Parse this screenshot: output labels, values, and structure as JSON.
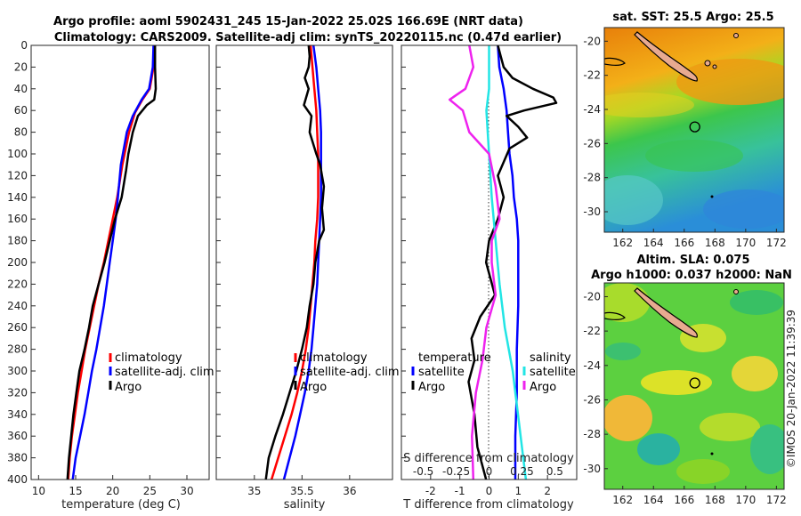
{
  "header": {
    "title_line1": "Argo profile: aoml 5902431_245 15-Jan-2022 25.02S 166.69E (NRT data)",
    "title_line2": "Climatology: CARS2009. Satellite-adj clim: synTS_20220115.nc (0.47d earlier)"
  },
  "watermark": "©IMOS 20-Jan-2022 11:39:39",
  "colors": {
    "climatology": "#ff0000",
    "satellite": "#0000ff",
    "argo": "#000000",
    "sal_satellite": "#22e5e5",
    "sal_argo": "#ee22ee",
    "map_land": "#e8aa90"
  },
  "depth_axis": {
    "ylim": [
      0,
      400
    ],
    "ticks": [
      0,
      20,
      40,
      60,
      80,
      100,
      120,
      140,
      160,
      180,
      200,
      220,
      240,
      260,
      280,
      300,
      320,
      340,
      360,
      380,
      400
    ]
  },
  "chart_data": [
    {
      "type": "line",
      "panel": "temperature",
      "xlabel": "temperature (deg C)",
      "xlim": [
        9,
        33
      ],
      "xticks": [
        10,
        15,
        20,
        25,
        30
      ],
      "legend": [
        "climatology",
        "satellite-adj. clim",
        "Argo"
      ],
      "series": [
        {
          "name": "climatology",
          "color": "#ff0000",
          "points": [
            [
              25.6,
              0
            ],
            [
              25.5,
              20
            ],
            [
              25.0,
              40
            ],
            [
              24.0,
              50
            ],
            [
              23.0,
              62
            ],
            [
              22.2,
              80
            ],
            [
              21.3,
              110
            ],
            [
              20.6,
              140
            ],
            [
              20.0,
              160
            ],
            [
              19.4,
              180
            ],
            [
              18.8,
              200
            ],
            [
              18.1,
              220
            ],
            [
              17.5,
              240
            ],
            [
              16.9,
              260
            ],
            [
              16.3,
              280
            ],
            [
              15.8,
              300
            ],
            [
              15.3,
              320
            ],
            [
              14.9,
              340
            ],
            [
              14.5,
              360
            ],
            [
              14.2,
              380
            ],
            [
              14.0,
              400
            ]
          ]
        },
        {
          "name": "satellite-adj. clim",
          "color": "#0000ff",
          "points": [
            [
              25.5,
              0
            ],
            [
              25.4,
              20
            ],
            [
              24.9,
              40
            ],
            [
              23.9,
              50
            ],
            [
              22.7,
              65
            ],
            [
              21.9,
              80
            ],
            [
              21.1,
              110
            ],
            [
              20.7,
              140
            ],
            [
              20.4,
              160
            ],
            [
              20.0,
              180
            ],
            [
              19.6,
              200
            ],
            [
              19.2,
              220
            ],
            [
              18.8,
              240
            ],
            [
              18.3,
              260
            ],
            [
              17.8,
              280
            ],
            [
              17.2,
              300
            ],
            [
              16.7,
              320
            ],
            [
              16.2,
              340
            ],
            [
              15.6,
              360
            ],
            [
              15.0,
              380
            ],
            [
              14.6,
              400
            ]
          ]
        },
        {
          "name": "Argo",
          "color": "#000000",
          "points": [
            [
              25.7,
              0
            ],
            [
              25.7,
              20
            ],
            [
              25.8,
              40
            ],
            [
              25.6,
              50
            ],
            [
              24.6,
              55
            ],
            [
              23.4,
              65
            ],
            [
              22.7,
              80
            ],
            [
              22.1,
              100
            ],
            [
              21.8,
              115
            ],
            [
              21.2,
              140
            ],
            [
              20.3,
              160
            ],
            [
              19.6,
              180
            ],
            [
              18.9,
              200
            ],
            [
              18.1,
              220
            ],
            [
              17.3,
              240
            ],
            [
              16.8,
              260
            ],
            [
              16.2,
              280
            ],
            [
              15.5,
              300
            ],
            [
              15.1,
              320
            ],
            [
              14.7,
              340
            ],
            [
              14.4,
              360
            ],
            [
              14.1,
              380
            ],
            [
              13.9,
              400
            ]
          ]
        }
      ]
    },
    {
      "type": "line",
      "panel": "salinity",
      "xlabel": "salinity",
      "xlim": [
        34.6,
        36.45
      ],
      "xticks": [
        35,
        35.5,
        36
      ],
      "xtick_labels": [
        "35",
        "35.5",
        "36"
      ],
      "legend": [
        "climatology",
        "satellite-adj. clim",
        "Argo"
      ],
      "series": [
        {
          "name": "climatology",
          "color": "#ff0000",
          "points": [
            [
              35.59,
              0
            ],
            [
              35.61,
              20
            ],
            [
              35.63,
              40
            ],
            [
              35.65,
              60
            ],
            [
              35.66,
              80
            ],
            [
              35.67,
              100
            ],
            [
              35.67,
              120
            ],
            [
              35.67,
              140
            ],
            [
              35.66,
              160
            ],
            [
              35.64,
              180
            ],
            [
              35.63,
              200
            ],
            [
              35.61,
              220
            ],
            [
              35.59,
              240
            ],
            [
              35.57,
              260
            ],
            [
              35.54,
              280
            ],
            [
              35.5,
              300
            ],
            [
              35.45,
              320
            ],
            [
              35.39,
              340
            ],
            [
              35.32,
              360
            ],
            [
              35.25,
              380
            ],
            [
              35.18,
              400
            ]
          ]
        },
        {
          "name": "satellite-adj. clim",
          "color": "#0000ff",
          "points": [
            [
              35.62,
              0
            ],
            [
              35.65,
              20
            ],
            [
              35.67,
              40
            ],
            [
              35.69,
              60
            ],
            [
              35.7,
              80
            ],
            [
              35.7,
              100
            ],
            [
              35.7,
              120
            ],
            [
              35.7,
              140
            ],
            [
              35.69,
              160
            ],
            [
              35.68,
              180
            ],
            [
              35.67,
              200
            ],
            [
              35.66,
              220
            ],
            [
              35.64,
              240
            ],
            [
              35.62,
              260
            ],
            [
              35.6,
              280
            ],
            [
              35.57,
              300
            ],
            [
              35.53,
              320
            ],
            [
              35.48,
              340
            ],
            [
              35.43,
              360
            ],
            [
              35.37,
              380
            ],
            [
              35.31,
              400
            ]
          ]
        },
        {
          "name": "Argo",
          "color": "#000000",
          "points": [
            [
              35.57,
              0
            ],
            [
              35.58,
              10
            ],
            [
              35.57,
              20
            ],
            [
              35.53,
              30
            ],
            [
              35.57,
              40
            ],
            [
              35.52,
              55
            ],
            [
              35.6,
              65
            ],
            [
              35.58,
              80
            ],
            [
              35.65,
              100
            ],
            [
              35.69,
              110
            ],
            [
              35.73,
              130
            ],
            [
              35.71,
              150
            ],
            [
              35.73,
              170
            ],
            [
              35.68,
              180
            ],
            [
              35.64,
              200
            ],
            [
              35.62,
              220
            ],
            [
              35.58,
              240
            ],
            [
              35.55,
              260
            ],
            [
              35.5,
              280
            ],
            [
              35.44,
              300
            ],
            [
              35.37,
              320
            ],
            [
              35.3,
              340
            ],
            [
              35.22,
              360
            ],
            [
              35.15,
              380
            ],
            [
              35.12,
              400
            ]
          ]
        }
      ]
    },
    {
      "type": "line",
      "panel": "difference",
      "xlabel": "T difference from climatology",
      "xlabel_top": "S difference from climatology",
      "xlim": [
        -3,
        3
      ],
      "xticks": [
        -2,
        -1,
        0,
        1,
        2
      ],
      "xtick_labels": [
        "-2",
        "-1",
        "0",
        "1",
        "2"
      ],
      "s_ticks": [
        -0.5,
        -0.25,
        0,
        0.25,
        0.5
      ],
      "s_tick_labels": [
        "-0.5",
        "-0.25",
        "0",
        "0.25",
        "0.5"
      ],
      "legend_left_title": "temperature",
      "legend_right_title": "salinity",
      "legend_left": [
        "satellite",
        "Argo"
      ],
      "legend_right": [
        "satellite",
        "Argo"
      ],
      "series": [
        {
          "name": "T satellite",
          "color": "#0000ff",
          "points": [
            [
              0.3,
              0
            ],
            [
              0.35,
              20
            ],
            [
              0.5,
              40
            ],
            [
              0.6,
              60
            ],
            [
              0.65,
              80
            ],
            [
              0.7,
              100
            ],
            [
              0.8,
              120
            ],
            [
              0.85,
              140
            ],
            [
              0.95,
              160
            ],
            [
              1.0,
              180
            ],
            [
              1.0,
              200
            ],
            [
              1.0,
              240
            ],
            [
              0.95,
              280
            ],
            [
              0.95,
              320
            ],
            [
              0.9,
              360
            ],
            [
              0.9,
              400
            ]
          ]
        },
        {
          "name": "T Argo",
          "color": "#000000",
          "points": [
            [
              0.3,
              0
            ],
            [
              0.4,
              10
            ],
            [
              0.5,
              20
            ],
            [
              0.8,
              30
            ],
            [
              1.5,
              40
            ],
            [
              2.2,
              48
            ],
            [
              2.3,
              53
            ],
            [
              1.2,
              60
            ],
            [
              0.6,
              65
            ],
            [
              1.0,
              75
            ],
            [
              1.3,
              85
            ],
            [
              0.7,
              95
            ],
            [
              0.3,
              120
            ],
            [
              0.5,
              140
            ],
            [
              0.3,
              160
            ],
            [
              0.0,
              180
            ],
            [
              -0.1,
              200
            ],
            [
              0.2,
              230
            ],
            [
              -0.3,
              250
            ],
            [
              -0.6,
              270
            ],
            [
              -0.5,
              290
            ],
            [
              -0.7,
              310
            ],
            [
              -0.5,
              340
            ],
            [
              -0.4,
              370
            ],
            [
              -0.1,
              400
            ]
          ]
        },
        {
          "name": "S satellite",
          "color": "#22e5e5",
          "points": [
            [
              0.0,
              0
            ],
            [
              0.0,
              40
            ],
            [
              -0.02,
              60
            ],
            [
              0.0,
              100
            ],
            [
              0.02,
              140
            ],
            [
              0.05,
              180
            ],
            [
              0.08,
              220
            ],
            [
              0.12,
              260
            ],
            [
              0.18,
              300
            ],
            [
              0.22,
              340
            ],
            [
              0.26,
              380
            ],
            [
              0.28,
              400
            ]
          ]
        },
        {
          "name": "S Argo",
          "color": "#ee22ee",
          "points": [
            [
              -0.15,
              0
            ],
            [
              -0.12,
              20
            ],
            [
              -0.18,
              40
            ],
            [
              -0.3,
              50
            ],
            [
              -0.2,
              60
            ],
            [
              -0.15,
              80
            ],
            [
              0.0,
              100
            ],
            [
              0.05,
              130
            ],
            [
              0.08,
              160
            ],
            [
              0.02,
              180
            ],
            [
              0.02,
              200
            ],
            [
              0.05,
              230
            ],
            [
              -0.02,
              260
            ],
            [
              -0.05,
              290
            ],
            [
              -0.1,
              320
            ],
            [
              -0.13,
              360
            ],
            [
              -0.12,
              400
            ]
          ]
        }
      ]
    }
  ],
  "maps": [
    {
      "name": "sst",
      "title": "sat. SST: 25.5 Argo: 25.5",
      "xlim": [
        160.8,
        172.5
      ],
      "ylim": [
        -31.2,
        -19.2
      ],
      "xticks": [
        162,
        164,
        166,
        168,
        170,
        172
      ],
      "yticks": [
        -20,
        -22,
        -24,
        -26,
        -28,
        -30
      ],
      "ytick_labels": [
        "-20",
        "-22",
        "-24",
        "-26",
        "-28",
        "-30"
      ],
      "argo_position": [
        166.69,
        -25.02
      ]
    },
    {
      "name": "sla",
      "title_line1": "Altim. SLA: 0.075",
      "title_line2": "Argo h1000: 0.037 h2000: NaN",
      "xlim": [
        160.8,
        172.5
      ],
      "ylim": [
        -31.2,
        -19.2
      ],
      "xticks": [
        162,
        164,
        166,
        168,
        170,
        172
      ],
      "yticks": [
        -20,
        -22,
        -24,
        -26,
        -28,
        -30
      ],
      "ytick_labels": [
        "-20",
        "-22",
        "-24",
        "-26",
        "-28",
        "-30"
      ],
      "argo_position": [
        166.69,
        -25.02
      ]
    }
  ]
}
